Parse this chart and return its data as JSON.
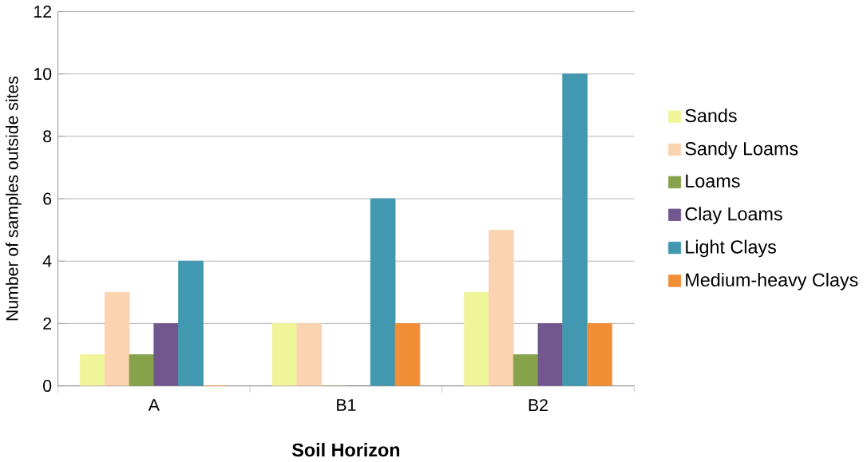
{
  "chart_data": {
    "type": "bar",
    "xlabel": "Soil Horizon",
    "ylabel": "Number of samples outside sites",
    "categories": [
      "A",
      "B1",
      "B2"
    ],
    "series": [
      {
        "name": "Sands",
        "color": "#f0f59a",
        "values": [
          1,
          2,
          3
        ]
      },
      {
        "name": "Sandy Loams",
        "color": "#fad4b0",
        "values": [
          3,
          2,
          5
        ]
      },
      {
        "name": "Loams",
        "color": "#86a24a",
        "values": [
          1,
          0,
          1
        ]
      },
      {
        "name": "Clay Loams",
        "color": "#72578f",
        "values": [
          2,
          0,
          2
        ]
      },
      {
        "name": "Light Clays",
        "color": "#4298b0",
        "values": [
          4,
          6,
          10
        ]
      },
      {
        "name": "Medium-heavy Clays",
        "color": "#f28e35",
        "values": [
          0,
          2,
          2
        ]
      }
    ],
    "ylim": [
      0,
      12
    ],
    "yticks": [
      0,
      2,
      4,
      6,
      8,
      10,
      12
    ],
    "grid": "y",
    "legend": "right"
  }
}
